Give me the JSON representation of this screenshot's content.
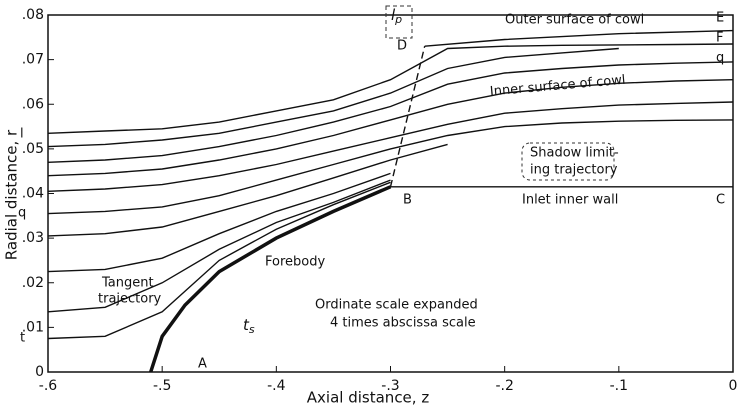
{
  "chart_data": {
    "type": "line",
    "xlabel": "Axial distance, z",
    "ylabel": "Radial distance, r",
    "xlim": [
      -0.6,
      0
    ],
    "ylim": [
      0,
      0.08
    ],
    "xticks": [
      {
        "value": -0.6,
        "label": "-.6"
      },
      {
        "value": -0.5,
        "label": "-.5"
      },
      {
        "value": -0.4,
        "label": "-.4"
      },
      {
        "value": -0.3,
        "label": "-.3"
      },
      {
        "value": -0.2,
        "label": "-.2"
      },
      {
        "value": -0.1,
        "label": "-.1"
      },
      0
    ],
    "yticks": [
      0,
      {
        "value": 0.01,
        "label": ".01"
      },
      {
        "value": 0.02,
        "label": ".02"
      },
      {
        "value": 0.03,
        "label": ".03"
      },
      {
        "value": 0.04,
        "label": ".04"
      },
      {
        "value": 0.05,
        "label": ".05"
      },
      {
        "value": 0.06,
        "label": ".06"
      },
      {
        "value": 0.07,
        "label": ".07"
      },
      {
        "value": 0.08,
        "label": ".08"
      }
    ],
    "grid": false,
    "color": "#111111",
    "series": [
      {
        "x": [
          -0.6,
          -0.55,
          -0.5,
          -0.45,
          -0.4,
          -0.35,
          -0.3,
          -0.25,
          -0.2,
          -0.15,
          -0.1,
          -0.05,
          0
        ],
        "values": [
          0.0535,
          0.054,
          0.0545,
          0.056,
          0.0585,
          0.061,
          0.0655,
          0.0725,
          0.073,
          0.0732,
          0.0733,
          0.0734,
          0.0735
        ]
      },
      {
        "x": [
          -0.6,
          -0.55,
          -0.5,
          -0.45,
          -0.4,
          -0.35,
          -0.3,
          -0.25,
          -0.2,
          -0.15,
          -0.1
        ],
        "values": [
          0.0505,
          0.051,
          0.052,
          0.0535,
          0.056,
          0.0585,
          0.0625,
          0.068,
          0.0705,
          0.0715,
          0.0725
        ]
      },
      {
        "x": [
          -0.6,
          -0.55,
          -0.5,
          -0.45,
          -0.4,
          -0.35,
          -0.3,
          -0.25,
          -0.2,
          -0.15,
          -0.1,
          -0.05,
          0
        ],
        "values": [
          0.047,
          0.0475,
          0.0485,
          0.0505,
          0.053,
          0.056,
          0.0595,
          0.0645,
          0.067,
          0.068,
          0.0688,
          0.0692,
          0.0695
        ]
      },
      {
        "x": [
          -0.6,
          -0.55,
          -0.5,
          -0.45,
          -0.4,
          -0.35,
          -0.3,
          -0.25,
          -0.2,
          -0.15,
          -0.1,
          -0.05,
          0
        ],
        "values": [
          0.044,
          0.0445,
          0.0455,
          0.0475,
          0.05,
          0.053,
          0.0565,
          0.06,
          0.0625,
          0.0638,
          0.0647,
          0.0652,
          0.0655
        ]
      },
      {
        "x": [
          -0.6,
          -0.55,
          -0.5,
          -0.45,
          -0.4,
          -0.35,
          -0.3,
          -0.25,
          -0.2,
          -0.15,
          -0.1,
          -0.05,
          0
        ],
        "values": [
          0.0405,
          0.041,
          0.042,
          0.044,
          0.0465,
          0.0495,
          0.0525,
          0.0555,
          0.058,
          0.059,
          0.0598,
          0.0602,
          0.0605
        ]
      },
      {
        "x": [
          -0.6,
          -0.55,
          -0.5,
          -0.45,
          -0.4,
          -0.35,
          -0.3,
          -0.25,
          -0.2,
          -0.15,
          -0.1,
          -0.05,
          0
        ],
        "values": [
          0.0355,
          0.036,
          0.037,
          0.0395,
          0.043,
          0.0465,
          0.05,
          0.053,
          0.055,
          0.0558,
          0.0562,
          0.0564,
          0.0565
        ]
      },
      {
        "x": [
          -0.6,
          -0.55,
          -0.5,
          -0.45,
          -0.4,
          -0.35,
          -0.3,
          -0.25
        ],
        "values": [
          0.0305,
          0.031,
          0.0325,
          0.036,
          0.0395,
          0.0435,
          0.0475,
          0.051
        ]
      },
      {
        "x": [
          -0.6,
          -0.55,
          -0.5,
          -0.45,
          -0.4,
          -0.35,
          -0.3
        ],
        "values": [
          0.0225,
          0.023,
          0.0255,
          0.031,
          0.036,
          0.04,
          0.0445
        ]
      },
      {
        "x": [
          -0.6,
          -0.55,
          -0.5,
          -0.45,
          -0.4,
          -0.35,
          -0.3
        ],
        "values": [
          0.0135,
          0.0145,
          0.02,
          0.0275,
          0.0335,
          0.038,
          0.043
        ]
      },
      {
        "x": [
          -0.6,
          -0.55,
          -0.5,
          -0.45,
          -0.4,
          -0.35,
          -0.3
        ],
        "values": [
          0.0075,
          0.008,
          0.0135,
          0.025,
          0.032,
          0.0375,
          0.0425
        ]
      },
      {
        "x": [
          -0.51,
          -0.5,
          -0.48,
          -0.45,
          -0.4,
          -0.35,
          -0.3
        ],
        "values": [
          0,
          0.008,
          0.015,
          0.0225,
          0.03,
          0.036,
          0.0415
        ],
        "bold": true
      },
      {
        "x": [
          -0.3,
          0
        ],
        "values": [
          0.0415,
          0.0415
        ]
      },
      {
        "x": [
          -0.27,
          -0.2,
          -0.1,
          0
        ],
        "values": [
          0.073,
          0.0745,
          0.0758,
          0.0765
        ]
      },
      {
        "x": [
          -0.3,
          -0.27
        ],
        "values": [
          0.0415,
          0.073
        ],
        "dash": true
      }
    ],
    "annotations": [
      "Outer surface of cowl",
      "Inner surface of cowl",
      "Shadow limit-",
      "ing trajectory",
      "Inlet inner wall",
      "Forebody",
      "Tangent",
      "trajectory",
      "Ordinate scale expanded",
      "4 times abscissa scale",
      "A",
      "B",
      "C",
      "D",
      "E",
      "F",
      "q",
      "q",
      "l",
      "t"
    ],
    "subscripted_labels": [
      {
        "text": "t",
        "sub": "s"
      },
      {
        "text": "l",
        "sub": "p"
      }
    ]
  }
}
